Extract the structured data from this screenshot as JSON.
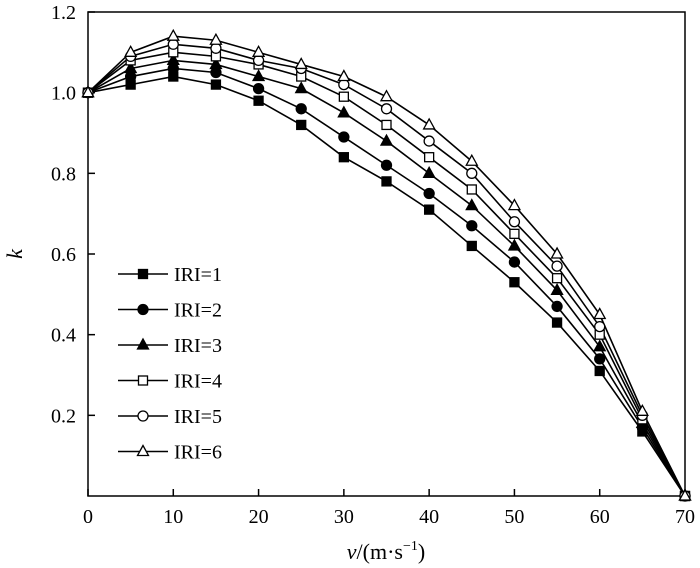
{
  "chart_data": {
    "type": "line",
    "xlabel_var": "v",
    "xlabel_unit": "/(m·s",
    "xlabel_exp": "−1",
    "xlabel_close": ")",
    "ylabel": "k",
    "xlim": [
      0,
      70
    ],
    "ylim": [
      0,
      1.2
    ],
    "xticks": [
      0,
      10,
      20,
      30,
      40,
      50,
      60,
      70
    ],
    "yticks": [
      0.2,
      0.4,
      0.6,
      0.8,
      1.0,
      1.2
    ],
    "xtick_labels": [
      "0",
      "10",
      "20",
      "30",
      "40",
      "50",
      "60",
      "70"
    ],
    "ytick_labels": [
      "0.2",
      "0.4",
      "0.6",
      "0.8",
      "1.0",
      "1.2"
    ],
    "grid": false,
    "legend_position": "lower-left",
    "x": [
      0,
      5,
      10,
      15,
      20,
      25,
      30,
      35,
      40,
      45,
      50,
      55,
      60,
      65,
      70
    ],
    "series": [
      {
        "name": "IRI=1",
        "marker": "filled-square",
        "values": [
          1.0,
          1.02,
          1.04,
          1.02,
          0.98,
          0.92,
          0.84,
          0.78,
          0.71,
          0.62,
          0.53,
          0.43,
          0.31,
          0.16,
          0.0
        ]
      },
      {
        "name": "IRI=2",
        "marker": "filled-circle",
        "values": [
          1.0,
          1.04,
          1.06,
          1.05,
          1.01,
          0.96,
          0.89,
          0.82,
          0.75,
          0.67,
          0.58,
          0.47,
          0.34,
          0.17,
          0.0
        ]
      },
      {
        "name": "IRI=3",
        "marker": "filled-triangle",
        "values": [
          1.0,
          1.06,
          1.08,
          1.07,
          1.04,
          1.01,
          0.95,
          0.88,
          0.8,
          0.72,
          0.62,
          0.51,
          0.37,
          0.18,
          0.0
        ]
      },
      {
        "name": "IRI=4",
        "marker": "open-square",
        "values": [
          1.0,
          1.08,
          1.1,
          1.09,
          1.07,
          1.04,
          0.99,
          0.92,
          0.84,
          0.76,
          0.65,
          0.54,
          0.4,
          0.19,
          0.0
        ]
      },
      {
        "name": "IRI=5",
        "marker": "open-circle",
        "values": [
          1.0,
          1.09,
          1.12,
          1.11,
          1.08,
          1.06,
          1.02,
          0.96,
          0.88,
          0.8,
          0.68,
          0.57,
          0.42,
          0.2,
          0.0
        ]
      },
      {
        "name": "IRI=6",
        "marker": "open-triangle",
        "values": [
          1.0,
          1.1,
          1.14,
          1.13,
          1.1,
          1.07,
          1.04,
          0.99,
          0.92,
          0.83,
          0.72,
          0.6,
          0.45,
          0.21,
          0.0
        ]
      }
    ]
  }
}
